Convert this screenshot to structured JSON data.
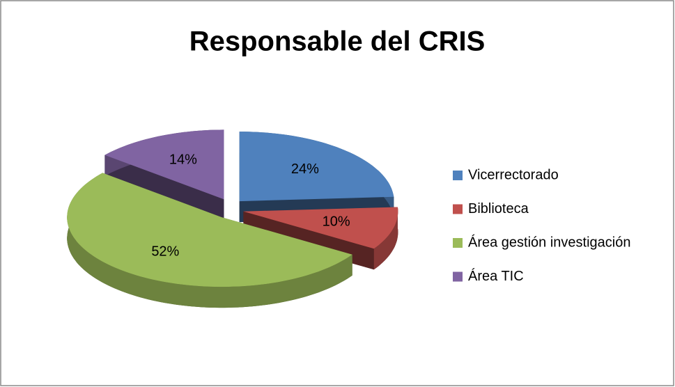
{
  "chart_data": {
    "type": "pie3d",
    "title": "Responsable del CRIS",
    "categories": [
      "Vicerrectorado",
      "Biblioteca",
      "Área gestión investigación",
      "Área TIC"
    ],
    "values": [
      24,
      10,
      52,
      14
    ],
    "value_labels": [
      "24%",
      "10%",
      "52%",
      "14%"
    ],
    "colors": [
      "#4f81bd",
      "#c0504d",
      "#9bbb59",
      "#8064a2"
    ],
    "legend": "right"
  }
}
